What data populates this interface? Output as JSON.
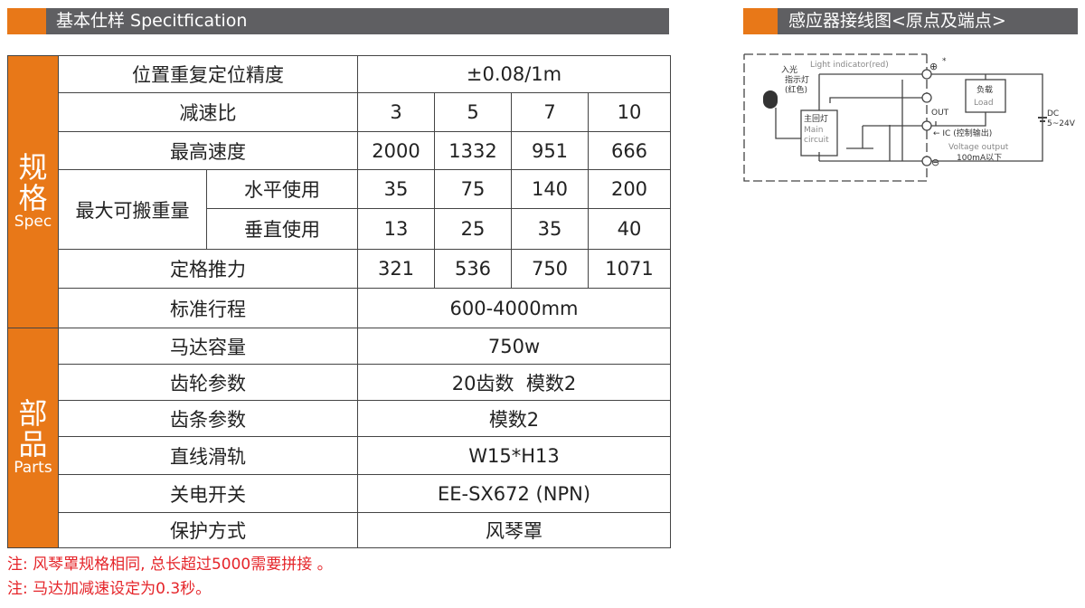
{
  "spec_header": {
    "title": "基本仕样 Specitfication"
  },
  "wiring_header": {
    "title": "感应器接线图<原点及端点>"
  },
  "table": {
    "spec_group": {
      "zh": "规格",
      "en": "Spec"
    },
    "parts_group": {
      "zh": "部品",
      "en": "Parts"
    },
    "precision": {
      "label": "位置重复定位精度",
      "value": "±0.08/1m"
    },
    "ratio": {
      "label": "减速比",
      "values": [
        "3",
        "5",
        "7",
        "10"
      ]
    },
    "speed": {
      "label": "最高速度",
      "values": [
        "2000",
        "1332",
        "951",
        "666"
      ]
    },
    "payload": {
      "label": "最大可搬重量",
      "horizontal": {
        "label": "水平使用",
        "values": [
          "35",
          "75",
          "140",
          "200"
        ]
      },
      "vertical": {
        "label": "垂直使用",
        "values": [
          "13",
          "25",
          "35",
          "40"
        ]
      }
    },
    "thrust": {
      "label": "定格推力",
      "values": [
        "321",
        "536",
        "750",
        "1071"
      ]
    },
    "stroke": {
      "label": "标准行程",
      "value": "600-4000mm"
    },
    "motor": {
      "label": "马达容量",
      "value": "750w"
    },
    "gear": {
      "label": "齿轮参数",
      "value": "20齿数  模数2"
    },
    "rack": {
      "label": "齿条参数",
      "value": "模数2"
    },
    "rail": {
      "label": "直线滑轨",
      "value": "W15*H13"
    },
    "switch": {
      "label": "关电开关",
      "value": "EE-SX672 (NPN)"
    },
    "protection": {
      "label": "保护方式",
      "value": "风琴罩"
    }
  },
  "notes": [
    "注: 风琴罩规格相同, 总长超过5000需要拼接 。",
    "注: 马达加减速设定为0.3秒。"
  ],
  "diagram": {
    "light_indicator": "Light indicator(red)",
    "indicator_zh": [
      "入光",
      "指示灯",
      "(红色)"
    ],
    "main_circuit_zh": "主回灯",
    "main_circuit_en": [
      "Main",
      "circuit"
    ],
    "load_zh": "负载",
    "load_en": "Load",
    "out": "OUT",
    "ic": "← IC (控制输出)",
    "voltage_output": "Voltage output",
    "current": "100mA以下",
    "dc": "DC",
    "dc_range": "5~24V",
    "plus": "⊕",
    "minus": "⊖",
    "asterisk": "*"
  },
  "colors": {
    "accent": "#e87818",
    "header_bg": "#5f5f62",
    "note": "#e5252a"
  }
}
